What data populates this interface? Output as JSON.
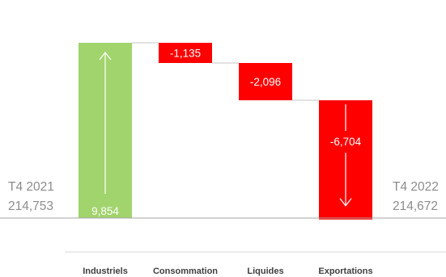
{
  "chart_data": {
    "type": "bar",
    "subtype": "waterfall",
    "title": "",
    "xlabel": "",
    "ylabel": "",
    "start": {
      "label_line1": "T4 2021",
      "label_line2": "214,753",
      "value": 214753
    },
    "end": {
      "label_line1": "T4 2022",
      "label_line2": "214,672",
      "value": 214672
    },
    "categories": [
      "Industriels",
      "Consommation",
      "Liquides",
      "Exportations"
    ],
    "values": [
      9854,
      -1135,
      -2096,
      -6704
    ],
    "value_labels": [
      "9,854",
      "-1,135",
      "-2,096",
      "-6,704"
    ],
    "colors": {
      "increase": "#a1d46d",
      "decrease": "#ff0000",
      "connector": "#d9d9d9",
      "baseline": "#a6a6a6",
      "arrow": "#ffffff"
    },
    "ylim": [
      214753,
      224607
    ],
    "grid": false,
    "legend": "none"
  }
}
